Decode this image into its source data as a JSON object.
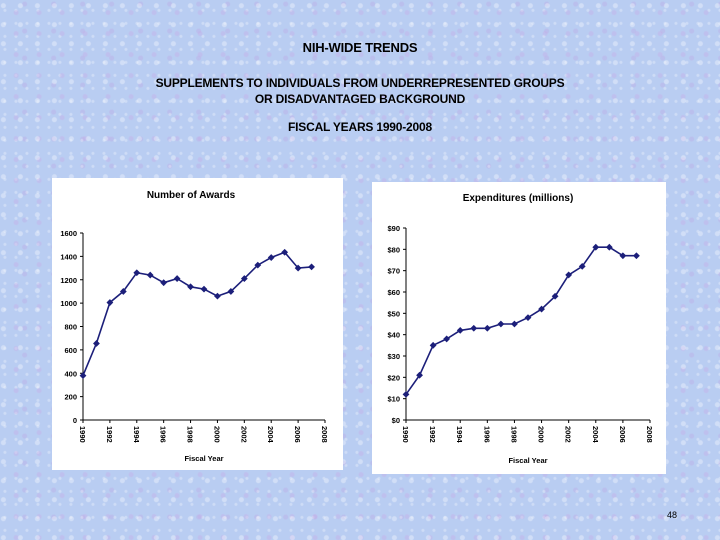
{
  "header": {
    "title": "NIH-WIDE TRENDS",
    "subtitle_line1": "SUPPLEMENTS TO INDIVIDUALS FROM UNDERREPRESENTED GROUPS",
    "subtitle_line2": "OR DISADVANTAGED BACKGROUND",
    "fiscal_years": "FISCAL YEARS 1990-2008"
  },
  "page_number": "48",
  "colors": {
    "series": "#1c1f7a",
    "axis": "#000000"
  },
  "chart_data": [
    {
      "type": "line",
      "title": "Number of Awards",
      "xlabel": "Fiscal Year",
      "ylabel": "",
      "x": [
        1990,
        1991,
        1992,
        1993,
        1994,
        1995,
        1996,
        1997,
        1998,
        1999,
        2000,
        2001,
        2002,
        2003,
        2004,
        2005,
        2006,
        2007
      ],
      "values": [
        380,
        655,
        1005,
        1100,
        1260,
        1240,
        1175,
        1210,
        1140,
        1120,
        1060,
        1100,
        1210,
        1325,
        1390,
        1435,
        1300,
        1310
      ],
      "x_ticks": [
        "1990",
        "1992",
        "1994",
        "1996",
        "1998",
        "2000",
        "2002",
        "2004",
        "2006",
        "2008"
      ],
      "y_ticks": [
        "0",
        "200",
        "400",
        "600",
        "800",
        "1000",
        "1200",
        "1400",
        "1600"
      ],
      "ylim": [
        0,
        1600
      ],
      "xlim": [
        1990,
        2008
      ],
      "grid": false,
      "marker": "diamond"
    },
    {
      "type": "line",
      "title": "Expenditures (millions)",
      "xlabel": "Fiscal Year",
      "ylabel": "",
      "x": [
        1990,
        1991,
        1992,
        1993,
        1994,
        1995,
        1996,
        1997,
        1998,
        1999,
        2000,
        2001,
        2002,
        2003,
        2004,
        2005,
        2006,
        2007
      ],
      "values": [
        12,
        21,
        35,
        38,
        42,
        43,
        43,
        45,
        45,
        48,
        52,
        58,
        68,
        72,
        81,
        81,
        77,
        77
      ],
      "x_ticks": [
        "1990",
        "1992",
        "1994",
        "1996",
        "1998",
        "2000",
        "2002",
        "2004",
        "2006",
        "2008"
      ],
      "y_ticks": [
        "$0",
        "$10",
        "$20",
        "$30",
        "$40",
        "$50",
        "$60",
        "$70",
        "$80",
        "$90"
      ],
      "ylim": [
        0,
        90
      ],
      "xlim": [
        1990,
        2008
      ],
      "grid": false,
      "marker": "diamond"
    }
  ]
}
